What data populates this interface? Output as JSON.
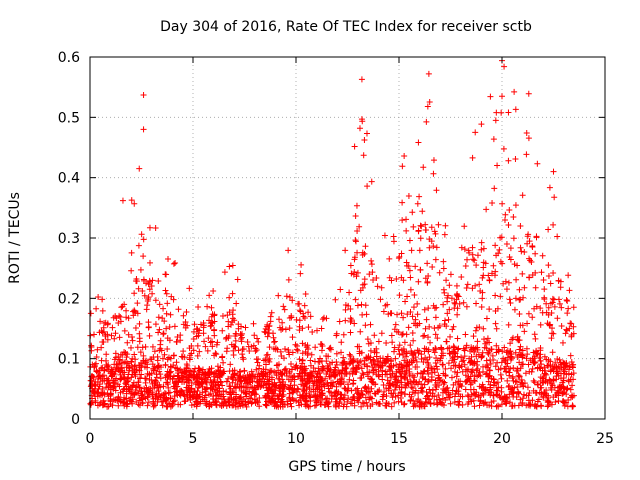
{
  "chart_data": {
    "type": "scatter",
    "title": "Day 304 of 2016, Rate Of TEC Index for receiver sctb",
    "xlabel": "GPS time / hours",
    "ylabel": "ROTI / TECUs",
    "xlim": [
      0,
      25
    ],
    "ylim": [
      0,
      0.6
    ],
    "xticks": [
      0,
      5,
      10,
      15,
      20,
      25
    ],
    "yticks": [
      0,
      0.1,
      0.2,
      0.3,
      0.4,
      0.5,
      0.6
    ],
    "xtick_labels": [
      "0",
      "5",
      "10",
      "15",
      "20",
      "25"
    ],
    "ytick_labels": [
      "0",
      "0.1",
      "0.2",
      "0.3",
      "0.4",
      "0.5",
      "0.6"
    ],
    "grid": true,
    "marker": "+",
    "color": "#ff0000",
    "data_range": [
      0,
      23.5
    ],
    "envelope": [
      {
        "x": 0.0,
        "base": 0.08,
        "upper": 0.19
      },
      {
        "x": 0.5,
        "base": 0.07,
        "upper": 0.24
      },
      {
        "x": 1.0,
        "base": 0.07,
        "upper": 0.21
      },
      {
        "x": 1.7,
        "base": 0.08,
        "upper": 0.3
      },
      {
        "x": 2.6,
        "base": 0.08,
        "upper": 0.53
      },
      {
        "x": 3.3,
        "base": 0.07,
        "upper": 0.28
      },
      {
        "x": 4.0,
        "base": 0.07,
        "upper": 0.3
      },
      {
        "x": 5.0,
        "base": 0.06,
        "upper": 0.2
      },
      {
        "x": 6.0,
        "base": 0.06,
        "upper": 0.25
      },
      {
        "x": 7.0,
        "base": 0.06,
        "upper": 0.26
      },
      {
        "x": 8.0,
        "base": 0.06,
        "upper": 0.17
      },
      {
        "x": 9.0,
        "base": 0.06,
        "upper": 0.24
      },
      {
        "x": 10.0,
        "base": 0.07,
        "upper": 0.31
      },
      {
        "x": 11.0,
        "base": 0.06,
        "upper": 0.15
      },
      {
        "x": 12.0,
        "base": 0.07,
        "upper": 0.22
      },
      {
        "x": 13.2,
        "base": 0.09,
        "upper": 0.56
      },
      {
        "x": 14.0,
        "base": 0.08,
        "upper": 0.3
      },
      {
        "x": 15.2,
        "base": 0.09,
        "upper": 0.43
      },
      {
        "x": 16.4,
        "base": 0.1,
        "upper": 0.57
      },
      {
        "x": 17.5,
        "base": 0.1,
        "upper": 0.29
      },
      {
        "x": 18.7,
        "base": 0.1,
        "upper": 0.47
      },
      {
        "x": 20.0,
        "base": 0.1,
        "upper": 0.59
      },
      {
        "x": 21.3,
        "base": 0.1,
        "upper": 0.53
      },
      {
        "x": 22.4,
        "base": 0.08,
        "upper": 0.41
      },
      {
        "x": 23.5,
        "base": 0.07,
        "upper": 0.23
      }
    ],
    "peaks": [
      {
        "x": 2.6,
        "y": 0.537
      },
      {
        "x": 2.6,
        "y": 0.48
      },
      {
        "x": 13.2,
        "y": 0.563
      },
      {
        "x": 13.2,
        "y": 0.497
      },
      {
        "x": 15.25,
        "y": 0.436
      },
      {
        "x": 16.45,
        "y": 0.572
      },
      {
        "x": 16.4,
        "y": 0.518
      },
      {
        "x": 18.7,
        "y": 0.475
      },
      {
        "x": 20.0,
        "y": 0.594
      },
      {
        "x": 20.1,
        "y": 0.584
      },
      {
        "x": 19.7,
        "y": 0.495
      },
      {
        "x": 20.0,
        "y": 0.535
      },
      {
        "x": 21.3,
        "y": 0.539
      },
      {
        "x": 21.2,
        "y": 0.474
      },
      {
        "x": 22.5,
        "y": 0.41
      },
      {
        "x": 1.6,
        "y": 0.362
      }
    ]
  }
}
